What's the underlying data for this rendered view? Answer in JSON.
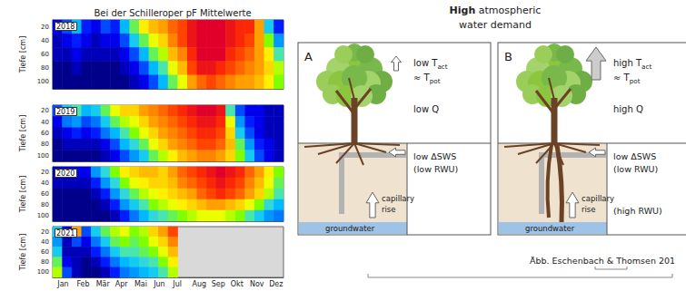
{
  "chart_data": [
    {
      "type": "heatmap",
      "title": "Bei der Schilleroper pF Mittelwerte",
      "annotation": "2018",
      "ylabel": "Tiefe [cm]",
      "tick_labels": "y",
      "categories": [
        "Jan",
        null,
        "Feb",
        null,
        "Mär",
        null,
        "Apr",
        null,
        "Mai",
        null,
        "Jun",
        null,
        "Jul",
        null,
        "Aug",
        null,
        "Sep",
        null,
        "Okt",
        null,
        "Nov",
        null,
        "Dez",
        null
      ],
      "y_categories": [
        "20",
        "40",
        "60",
        "80",
        "100"
      ],
      "color_range": [
        1.8,
        4.2
      ],
      "color_scale": [
        "#00008b",
        "#0000ff",
        "#0070ff",
        "#00c0ff",
        "#40e0d0",
        "#7fff00",
        "#ffff00",
        "#ffc000",
        "#ff8000",
        "#ff3000",
        "#e0002a"
      ],
      "cells": [
        [
          2.0,
          2.2,
          2.5,
          2.1,
          2.0,
          2.2,
          2.1,
          2.5,
          2.9,
          3.3,
          3.5,
          3.6,
          3.8,
          3.9,
          4.1,
          4.2,
          4.2,
          4.2,
          4.1,
          4.0,
          4.0,
          3.6,
          2.6,
          2.1
        ],
        [
          1.9,
          2.0,
          2.1,
          2.0,
          1.9,
          2.0,
          2.0,
          2.2,
          2.6,
          2.9,
          3.2,
          3.4,
          3.7,
          3.9,
          4.1,
          4.2,
          4.2,
          4.2,
          4.1,
          4.0,
          3.9,
          3.6,
          3.0,
          2.4
        ],
        [
          1.9,
          1.9,
          2.0,
          1.9,
          1.9,
          1.9,
          1.9,
          2.0,
          2.2,
          2.5,
          2.9,
          3.1,
          3.5,
          3.7,
          4.0,
          4.2,
          4.2,
          4.2,
          4.0,
          3.9,
          3.8,
          3.6,
          3.3,
          2.8
        ],
        [
          1.8,
          1.8,
          1.9,
          1.8,
          1.8,
          1.8,
          1.8,
          1.9,
          2.0,
          2.2,
          2.5,
          2.8,
          3.2,
          3.5,
          3.9,
          4.1,
          4.1,
          4.0,
          3.9,
          3.8,
          3.7,
          3.6,
          3.4,
          3.1
        ],
        [
          1.8,
          1.8,
          1.8,
          1.8,
          1.8,
          1.8,
          1.8,
          1.8,
          1.9,
          2.0,
          2.2,
          2.5,
          2.9,
          3.2,
          3.6,
          3.8,
          3.9,
          3.8,
          3.7,
          3.6,
          3.6,
          3.5,
          3.3,
          3.0
        ]
      ]
    },
    {
      "type": "heatmap",
      "annotation": "2019",
      "ylabel": "Tiefe [cm]",
      "tick_labels": "y",
      "categories": [
        "Jan",
        null,
        "Feb",
        null,
        "Mär",
        null,
        "Apr",
        null,
        "Mai",
        null,
        "Jun",
        null,
        "Jul",
        null,
        "Aug",
        null,
        "Sep",
        null,
        "Okt",
        null,
        "Nov",
        null,
        "Dez",
        null
      ],
      "y_categories": [
        "20",
        "40",
        "60",
        "80",
        "100"
      ],
      "color_range": [
        1.8,
        4.2
      ],
      "color_scale": [
        "#00008b",
        "#0000ff",
        "#0070ff",
        "#00c0ff",
        "#40e0d0",
        "#7fff00",
        "#ffff00",
        "#ffc000",
        "#ff8000",
        "#ff3000",
        "#e0002a"
      ],
      "cells": [
        [
          2.2,
          2.6,
          2.8,
          2.5,
          2.6,
          2.9,
          3.2,
          3.4,
          3.4,
          3.6,
          3.7,
          3.8,
          3.9,
          4.0,
          4.1,
          4.2,
          4.2,
          4.1,
          2.8,
          2.2,
          2.0,
          2.0,
          1.9,
          1.9
        ],
        [
          2.0,
          2.3,
          2.4,
          2.2,
          2.3,
          2.6,
          2.9,
          3.1,
          3.2,
          3.4,
          3.6,
          3.7,
          3.8,
          3.9,
          4.0,
          4.1,
          4.1,
          4.0,
          3.2,
          2.4,
          2.1,
          2.0,
          1.9,
          1.9
        ],
        [
          1.9,
          2.0,
          2.1,
          2.0,
          2.1,
          2.3,
          2.5,
          2.8,
          3.0,
          3.2,
          3.4,
          3.6,
          3.7,
          3.8,
          3.9,
          4.0,
          4.0,
          3.9,
          3.4,
          2.6,
          2.2,
          2.0,
          1.9,
          1.9
        ],
        [
          1.8,
          1.9,
          1.9,
          1.9,
          1.9,
          2.0,
          2.2,
          2.5,
          2.7,
          2.9,
          3.2,
          3.4,
          3.6,
          3.7,
          3.8,
          3.9,
          3.9,
          3.8,
          3.5,
          2.9,
          2.4,
          2.1,
          2.0,
          1.9
        ],
        [
          1.8,
          1.8,
          1.8,
          1.8,
          1.8,
          1.9,
          2.0,
          2.2,
          2.4,
          2.6,
          2.9,
          3.1,
          3.3,
          3.5,
          3.6,
          3.7,
          3.7,
          3.6,
          3.4,
          3.0,
          2.6,
          2.2,
          2.0,
          1.9
        ]
      ]
    },
    {
      "type": "heatmap",
      "annotation": "2020",
      "ylabel": "Tiefe [cm]",
      "tick_labels": "y",
      "categories": [
        "Jan",
        null,
        "Feb",
        null,
        "Mär",
        null,
        "Apr",
        null,
        "Mai",
        null,
        "Jun",
        null,
        "Jul",
        null,
        "Aug",
        null,
        "Sep",
        null,
        "Okt",
        null,
        "Nov",
        null,
        "Dez",
        null
      ],
      "y_categories": [
        "20",
        "40",
        "60",
        "80",
        "100"
      ],
      "color_range": [
        1.8,
        4.2
      ],
      "color_scale": [
        "#00008b",
        "#0000ff",
        "#0070ff",
        "#00c0ff",
        "#40e0d0",
        "#7fff00",
        "#ffff00",
        "#ffc000",
        "#ff8000",
        "#ff3000",
        "#e0002a"
      ],
      "cells": [
        [
          1.9,
          2.0,
          2.0,
          2.0,
          2.4,
          2.7,
          3.0,
          3.3,
          3.4,
          3.5,
          3.5,
          3.4,
          3.6,
          3.8,
          3.9,
          4.0,
          4.1,
          4.2,
          4.1,
          4.0,
          3.8,
          3.6,
          3.3,
          3.0
        ],
        [
          1.9,
          1.9,
          1.9,
          1.9,
          2.1,
          2.4,
          2.7,
          3.0,
          3.2,
          3.3,
          3.4,
          3.4,
          3.5,
          3.7,
          3.8,
          3.9,
          4.0,
          4.1,
          4.0,
          3.9,
          3.7,
          3.5,
          3.2,
          2.9
        ],
        [
          1.8,
          1.8,
          1.8,
          1.8,
          1.9,
          2.1,
          2.4,
          2.7,
          2.9,
          3.1,
          3.2,
          3.3,
          3.4,
          3.5,
          3.6,
          3.8,
          3.9,
          4.0,
          3.9,
          3.8,
          3.6,
          3.4,
          3.1,
          2.8
        ],
        [
          1.8,
          1.8,
          1.8,
          1.8,
          1.8,
          1.9,
          2.1,
          2.4,
          2.6,
          2.8,
          3.0,
          3.1,
          3.2,
          3.3,
          3.4,
          3.5,
          3.6,
          3.6,
          3.5,
          3.4,
          3.2,
          3.0,
          2.7,
          2.5
        ],
        [
          1.8,
          1.8,
          1.8,
          1.8,
          1.8,
          1.8,
          1.9,
          2.1,
          2.3,
          2.5,
          2.7,
          2.8,
          2.9,
          3.0,
          3.1,
          3.2,
          3.2,
          3.2,
          3.1,
          3.0,
          2.8,
          2.6,
          2.4,
          2.3
        ]
      ]
    },
    {
      "type": "heatmap",
      "annotation": "2021",
      "ylabel": "Tiefe [cm]",
      "categories": [
        "Jan",
        null,
        "Feb",
        null,
        "Mär",
        null,
        "Apr",
        null,
        "Mai",
        null,
        "Jun",
        null,
        "Jul",
        null,
        "Aug",
        null,
        "Sep",
        null,
        "Okt",
        null,
        "Nov",
        null,
        "Dez",
        null
      ],
      "y_categories": [
        "20",
        "40",
        "60",
        "80",
        "100"
      ],
      "color_range": [
        1.8,
        4.2
      ],
      "color_scale": [
        "#00008b",
        "#0000ff",
        "#0070ff",
        "#00c0ff",
        "#40e0d0",
        "#7fff00",
        "#ffff00",
        "#ffc000",
        "#ff8000",
        "#ff3000",
        "#e0002a"
      ],
      "cells": [
        [
          2.6,
          2.0,
          3.6,
          2.2,
          2.6,
          2.9,
          3.1,
          3.2,
          3.0,
          3.1,
          3.4,
          3.6,
          3.9,
          null,
          null,
          null,
          null,
          null,
          null,
          null,
          null,
          null,
          null,
          null
        ],
        [
          2.4,
          1.9,
          2.2,
          2.0,
          2.3,
          2.6,
          2.9,
          3.0,
          2.9,
          3.0,
          3.2,
          3.4,
          3.7,
          null,
          null,
          null,
          null,
          null,
          null,
          null,
          null,
          null,
          null,
          null
        ],
        [
          2.6,
          1.9,
          1.9,
          1.9,
          2.1,
          2.3,
          2.6,
          2.8,
          2.8,
          2.9,
          3.0,
          3.2,
          3.5,
          null,
          null,
          null,
          null,
          null,
          null,
          null,
          null,
          null,
          null,
          null
        ],
        [
          2.9,
          2.0,
          1.9,
          1.8,
          1.9,
          2.1,
          2.3,
          2.5,
          2.6,
          2.7,
          2.8,
          3.0,
          3.3,
          null,
          null,
          null,
          null,
          null,
          null,
          null,
          null,
          null,
          null,
          null
        ],
        [
          3.1,
          2.2,
          1.9,
          1.8,
          1.8,
          1.9,
          2.1,
          2.3,
          2.4,
          2.5,
          2.6,
          2.8,
          3.1,
          null,
          null,
          null,
          null,
          null,
          null,
          null,
          null,
          null,
          null,
          null
        ]
      ]
    }
  ],
  "diagram": {
    "title_lines": [
      "High atmospheric",
      "water demand"
    ],
    "panels": [
      {
        "label": "A",
        "transpiration": [
          [
            "low T",
            {
              "sub": "act"
            }
          ],
          [
            "≈ T",
            {
              "sub": "pot"
            }
          ]
        ],
        "discharge": [
          [
            "low Q"
          ]
        ],
        "storage": [
          [
            "low ΔSWS"
          ],
          [
            "(low RWU)"
          ]
        ],
        "capillary": [
          [
            "capillary"
          ],
          [
            "rise"
          ]
        ],
        "groundwater": "groundwater"
      },
      {
        "label": "B",
        "transpiration": [
          [
            "high T",
            {
              "sub": "act"
            }
          ],
          [
            "≈ T",
            {
              "sub": "pot"
            }
          ]
        ],
        "discharge": [
          [
            "high Q"
          ]
        ],
        "storage": [
          [
            "low ΔSWS"
          ],
          [
            "(low RWU)"
          ]
        ],
        "deep_uptake": [
          [
            "(high RWU)"
          ]
        ],
        "capillary": [
          [
            "capillary"
          ],
          [
            "rise"
          ]
        ],
        "groundwater": "groundwater"
      }
    ],
    "credit": "Äbb. Eschenbach & Thomsen 201"
  }
}
